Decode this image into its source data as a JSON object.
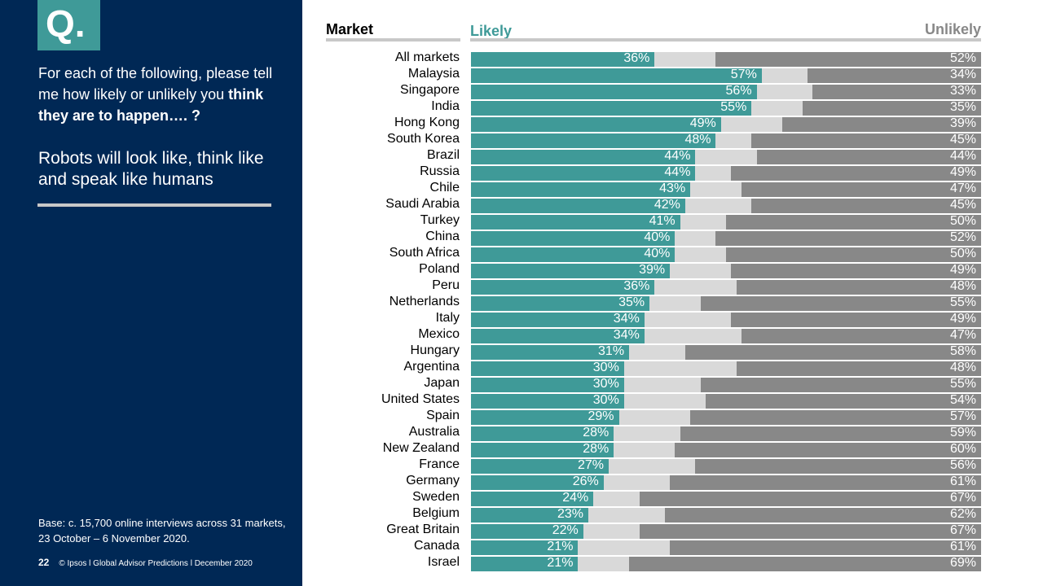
{
  "sidebar": {
    "badge": "Q.",
    "question_part1": "For each of the following, please tell me how likely or unlikely you ",
    "question_bold": "think they are to happen…. ?",
    "statement": "Robots will look like, think like and speak like humans",
    "base": "Base: c. 15,700 online interviews across 31 markets,  23 October – 6 November 2020.",
    "page_number": "22",
    "footer": "© Ipsos l Global Advisor Predictions l December 2020"
  },
  "colors": {
    "likely": "#3f9a98",
    "neutral": "#d9d9d9",
    "unlikely": "#888888",
    "sidebar": "#002855"
  },
  "chart_data": {
    "type": "bar",
    "orientation": "horizontal-stacked",
    "header_market": "Market",
    "header_likely": "Likely",
    "header_unlikely": "Unlikely",
    "rows": [
      {
        "market": "All markets",
        "likely": 36,
        "unlikely": 52
      },
      {
        "market": "Malaysia",
        "likely": 57,
        "unlikely": 34
      },
      {
        "market": "Singapore",
        "likely": 56,
        "unlikely": 33
      },
      {
        "market": "India",
        "likely": 55,
        "unlikely": 35
      },
      {
        "market": "Hong Kong",
        "likely": 49,
        "unlikely": 39
      },
      {
        "market": "South Korea",
        "likely": 48,
        "unlikely": 45
      },
      {
        "market": "Brazil",
        "likely": 44,
        "unlikely": 44
      },
      {
        "market": "Russia",
        "likely": 44,
        "unlikely": 49
      },
      {
        "market": "Chile",
        "likely": 43,
        "unlikely": 47
      },
      {
        "market": "Saudi Arabia",
        "likely": 42,
        "unlikely": 45
      },
      {
        "market": "Turkey",
        "likely": 41,
        "unlikely": 50
      },
      {
        "market": "China",
        "likely": 40,
        "unlikely": 52
      },
      {
        "market": "South Africa",
        "likely": 40,
        "unlikely": 50
      },
      {
        "market": "Poland",
        "likely": 39,
        "unlikely": 49
      },
      {
        "market": "Peru",
        "likely": 36,
        "unlikely": 48
      },
      {
        "market": "Netherlands",
        "likely": 35,
        "unlikely": 55
      },
      {
        "market": "Italy",
        "likely": 34,
        "unlikely": 49
      },
      {
        "market": "Mexico",
        "likely": 34,
        "unlikely": 47
      },
      {
        "market": "Hungary",
        "likely": 31,
        "unlikely": 58
      },
      {
        "market": "Argentina",
        "likely": 30,
        "unlikely": 48
      },
      {
        "market": "Japan",
        "likely": 30,
        "unlikely": 55
      },
      {
        "market": "United States",
        "likely": 30,
        "unlikely": 54
      },
      {
        "market": "Spain",
        "likely": 29,
        "unlikely": 57
      },
      {
        "market": "Australia",
        "likely": 28,
        "unlikely": 59
      },
      {
        "market": "New Zealand",
        "likely": 28,
        "unlikely": 60
      },
      {
        "market": "France",
        "likely": 27,
        "unlikely": 56
      },
      {
        "market": "Germany",
        "likely": 26,
        "unlikely": 61
      },
      {
        "market": "Sweden",
        "likely": 24,
        "unlikely": 67
      },
      {
        "market": "Belgium",
        "likely": 23,
        "unlikely": 62
      },
      {
        "market": "Great Britain",
        "likely": 22,
        "unlikely": 67
      },
      {
        "market": "Canada",
        "likely": 21,
        "unlikely": 61
      },
      {
        "market": "Israel",
        "likely": 21,
        "unlikely": 69
      }
    ],
    "xlim": [
      0,
      100
    ]
  }
}
